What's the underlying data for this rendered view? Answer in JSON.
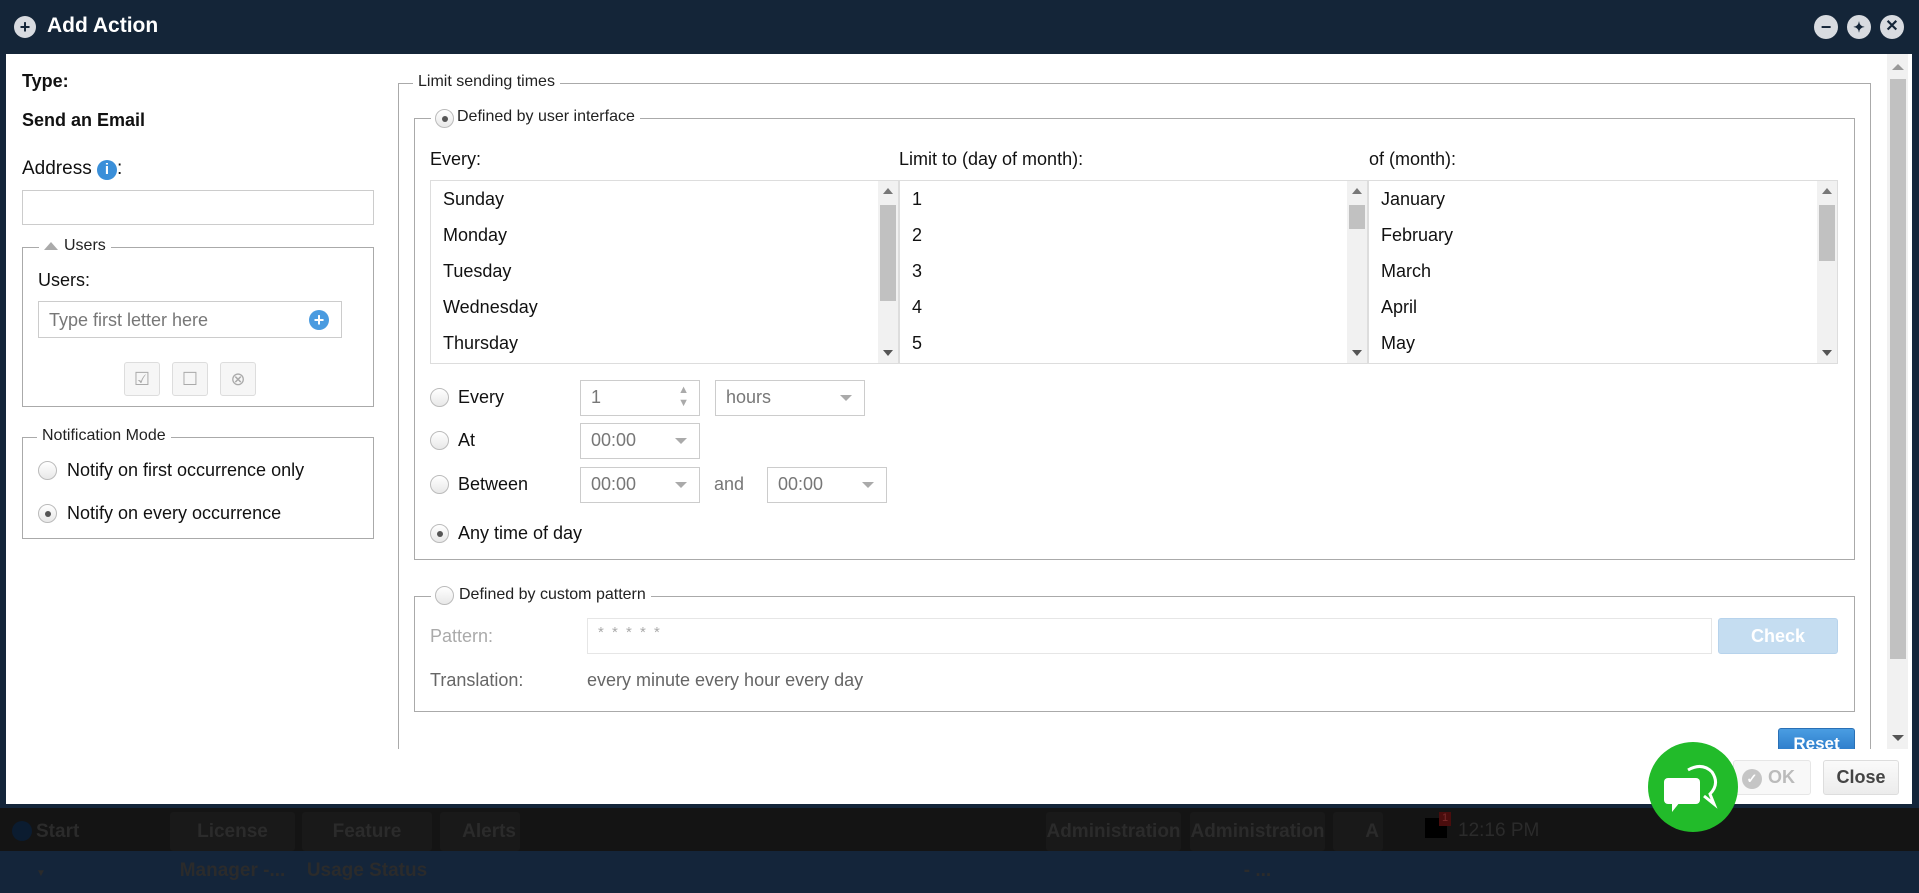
{
  "window": {
    "title": "Add Action",
    "icon": "plus-circle-icon",
    "controls": [
      "minimize-icon",
      "restore-icon",
      "close-icon"
    ]
  },
  "left": {
    "type_label": "Type:",
    "type_value": "Send an Email",
    "address_label": "Address",
    "address_suffix": ":",
    "address_value": "",
    "users_group": {
      "legend": "Users",
      "label": "Users:",
      "placeholder": "Type first letter here",
      "buttons": [
        "check-all-icon",
        "uncheck-all-icon",
        "clear-icon"
      ]
    },
    "notification": {
      "legend": "Notification Mode",
      "options": [
        {
          "label": "Notify on first occurrence only",
          "selected": false
        },
        {
          "label": "Notify on every occurrence",
          "selected": true
        }
      ]
    }
  },
  "limit": {
    "legend": "Limit sending times",
    "ui": {
      "legend": "Defined by user interface",
      "selected": true,
      "every_label": "Every:",
      "day_label": "Limit to (day of month):",
      "month_label": "of (month):",
      "weekdays": [
        "Sunday",
        "Monday",
        "Tuesday",
        "Wednesday",
        "Thursday"
      ],
      "days": [
        "1",
        "2",
        "3",
        "4",
        "5"
      ],
      "months": [
        "January",
        "February",
        "March",
        "April",
        "May"
      ],
      "every": {
        "label": "Every",
        "value": "1",
        "unit": "hours",
        "selected": false
      },
      "at": {
        "label": "At",
        "value": "00:00",
        "selected": false
      },
      "between": {
        "label": "Between",
        "from": "00:00",
        "and": "and",
        "to": "00:00",
        "selected": false
      },
      "any": {
        "label": "Any time of day",
        "selected": true
      }
    },
    "custom": {
      "legend": "Defined by custom pattern",
      "selected": false,
      "pattern_label": "Pattern:",
      "pattern_placeholder": "* * * * *",
      "check": "Check",
      "translation_label": "Translation:",
      "translation": "every minute every hour every day"
    },
    "reset": "Reset"
  },
  "footer": {
    "ok": "OK",
    "close": "Close"
  },
  "taskbar": {
    "start": "Start",
    "items": [
      "License Manager -...",
      "Feature Usage Status",
      "Alerts",
      "Administration",
      "Administration - ...",
      "A"
    ],
    "mail_badge": "1",
    "clock": "12:16 PM"
  },
  "colors": {
    "titlebar": "#142538",
    "accent": "#3a8fd9",
    "chat": "#22bb2a"
  }
}
